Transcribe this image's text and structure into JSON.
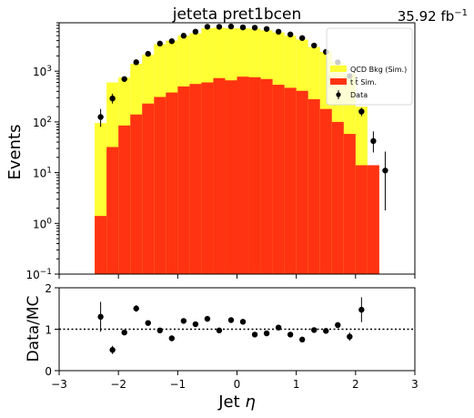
{
  "chart_data": [
    {
      "panel": "main",
      "type": "bar",
      "title": "jeteta  pret1bcen",
      "lumi_label": "35.92 fb",
      "lumi_unit_sup": "−1",
      "ylabel": "Events",
      "y_scale": "log",
      "ylim": [
        0.1,
        9000
      ],
      "xlim": [
        -3,
        3
      ],
      "y_ticks": [
        {
          "value": 0.1,
          "base": "10",
          "exp": "−1"
        },
        {
          "value": 1,
          "base": "10",
          "exp": "0"
        },
        {
          "value": 10,
          "base": "10",
          "exp": "1"
        },
        {
          "value": 100,
          "base": "10",
          "exp": "2"
        },
        {
          "value": 1000,
          "base": "10",
          "exp": "3"
        }
      ],
      "bin_width": 0.2,
      "bin_low_edges": [
        -2.4,
        -2.2,
        -2.0,
        -1.8,
        -1.6,
        -1.4,
        -1.2,
        -1.0,
        -0.8,
        -0.6,
        -0.4,
        -0.2,
        0.0,
        0.2,
        0.4,
        0.6,
        0.8,
        1.0,
        1.2,
        1.4,
        1.6,
        1.8,
        2.0,
        2.2
      ],
      "series": [
        {
          "name": "QCD Bkg (Sim.)",
          "kind": "stacked-hist",
          "color": "#ffff33",
          "stack_top": [
            95,
            600,
            750,
            1400,
            2100,
            3400,
            4000,
            5000,
            5600,
            7000,
            7200,
            7000,
            7000,
            6900,
            6400,
            5800,
            5000,
            4200,
            3000,
            2400,
            1500,
            900,
            200,
            null
          ]
        },
        {
          "name": "t t̄ Sim.",
          "kind": "hist",
          "color": "#ff3311",
          "values": [
            1.4,
            32,
            85,
            140,
            230,
            310,
            380,
            500,
            560,
            600,
            730,
            660,
            780,
            760,
            700,
            540,
            470,
            410,
            280,
            180,
            100,
            58,
            14,
            14
          ]
        },
        {
          "name": "Data",
          "kind": "points",
          "color": "#000000",
          "x": [
            -2.3,
            -2.1,
            -1.9,
            -1.7,
            -1.5,
            -1.3,
            -1.1,
            -0.9,
            -0.7,
            -0.5,
            -0.3,
            -0.1,
            0.1,
            0.3,
            0.5,
            0.7,
            0.9,
            1.1,
            1.3,
            1.5,
            1.7,
            1.9,
            2.1,
            2.3,
            2.5
          ],
          "y": [
            125,
            290,
            700,
            1500,
            2200,
            3500,
            3900,
            5000,
            6000,
            7500,
            7500,
            7600,
            7300,
            7200,
            6800,
            6000,
            5300,
            4500,
            3200,
            2400,
            1500,
            800,
            160,
            42,
            11
          ],
          "err_lo": [
            80,
            230,
            640,
            1440,
            2100,
            3400,
            3800,
            4900,
            5900,
            7400,
            7400,
            7500,
            7200,
            7100,
            6700,
            5900,
            5200,
            4400,
            3100,
            2300,
            1450,
            760,
            130,
            25,
            1.8
          ],
          "err_hi": [
            180,
            360,
            770,
            1570,
            2300,
            3600,
            4000,
            5100,
            6100,
            7600,
            7600,
            7700,
            7400,
            7300,
            6900,
            6100,
            5400,
            4600,
            3300,
            2500,
            1560,
            850,
            190,
            65,
            26
          ]
        }
      ],
      "legend": {
        "placement": "top-right",
        "entries": [
          {
            "label": "QCD Bkg (Sim.)",
            "color": "#ffff33",
            "marker": "patch"
          },
          {
            "label": "t t̄ Sim.",
            "color": "#ff3311",
            "marker": "patch"
          },
          {
            "label": "Data",
            "color": "#000000",
            "marker": "errorpoint"
          }
        ]
      }
    },
    {
      "panel": "ratio",
      "type": "scatter",
      "ylabel": "Data/MC",
      "xlabel_text": "Jet ",
      "xlabel_symbol": "η",
      "xlim": [
        -3,
        3
      ],
      "ylim": [
        0,
        2
      ],
      "x_ticks": [
        "−3",
        "−2",
        "−1",
        "0",
        "1",
        "2",
        "3"
      ],
      "x_tick_values": [
        -3,
        -2,
        -1,
        0,
        1,
        2,
        3
      ],
      "y_ticks": [
        "0",
        "1",
        "2"
      ],
      "y_tick_values": [
        0,
        1,
        2
      ],
      "reference_line": 1,
      "x": [
        -2.3,
        -2.1,
        -1.9,
        -1.7,
        -1.5,
        -1.3,
        -1.1,
        -0.9,
        -0.7,
        -0.5,
        -0.3,
        -0.1,
        0.1,
        0.3,
        0.5,
        0.7,
        0.9,
        1.1,
        1.3,
        1.5,
        1.7,
        1.9,
        2.1
      ],
      "y": [
        1.3,
        0.5,
        0.92,
        1.5,
        1.15,
        0.97,
        0.78,
        1.2,
        1.12,
        1.25,
        0.97,
        1.22,
        1.18,
        0.87,
        0.9,
        1.04,
        0.87,
        0.75,
        0.98,
        0.96,
        1.1,
        0.82,
        1.47
      ],
      "err": [
        0.36,
        0.1,
        0.05,
        0.08,
        0.04,
        0.03,
        0.03,
        0.03,
        0.03,
        0.03,
        0.03,
        0.02,
        0.02,
        0.02,
        0.03,
        0.03,
        0.03,
        0.03,
        0.04,
        0.05,
        0.07,
        0.1,
        0.3
      ]
    }
  ]
}
